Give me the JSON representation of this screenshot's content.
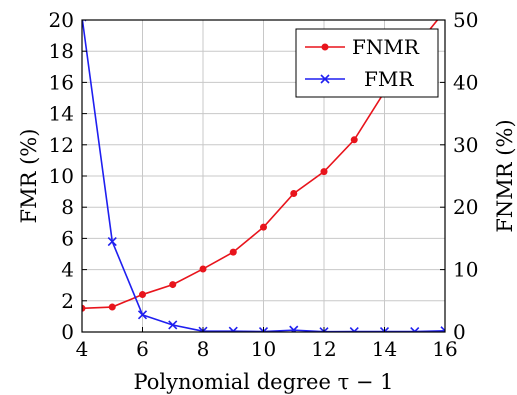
{
  "chart_data": {
    "type": "line",
    "x": [
      4,
      5,
      6,
      7,
      8,
      9,
      10,
      11,
      12,
      13,
      14,
      15,
      16
    ],
    "xlabel": "Polynomial degree τ − 1",
    "xlim": [
      4,
      16
    ],
    "xticks": [
      "4",
      "6",
      "8",
      "10",
      "12",
      "14",
      "16"
    ],
    "ylabel_left": "FMR (%)",
    "ylim_left": [
      0,
      20
    ],
    "yticks_left": [
      "0",
      "2",
      "4",
      "6",
      "8",
      "10",
      "12",
      "14",
      "16",
      "18",
      "20"
    ],
    "ylabel_right": "FNMR (%)",
    "ylim_right": [
      0,
      50
    ],
    "yticks_right": [
      "0",
      "10",
      "20",
      "30",
      "40",
      "50"
    ],
    "grid": true,
    "legend_position": "top-right",
    "series": [
      {
        "name": "FNMR",
        "axis": "right",
        "color": "#e8141c",
        "marker": "dot",
        "values": [
          3.8,
          4.0,
          6.0,
          7.6,
          10.1,
          12.8,
          16.8,
          22.2,
          25.7,
          30.8,
          38.5,
          45.5,
          51.5
        ]
      },
      {
        "name": "FMR",
        "axis": "left",
        "color": "#1f1ff0",
        "marker": "x",
        "values": [
          20.2,
          5.8,
          1.1,
          0.45,
          0.05,
          0.05,
          0.03,
          0.12,
          0.02,
          0.03,
          0.03,
          0.03,
          0.08
        ]
      }
    ]
  }
}
